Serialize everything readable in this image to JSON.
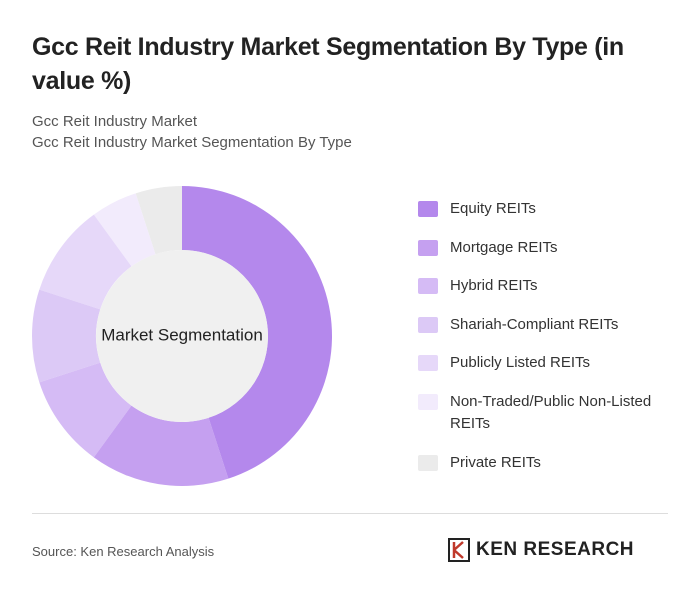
{
  "header": {
    "title": "Gcc Reit Industry Market Segmentation By Type (in value %)",
    "subtitle": [
      "Gcc Reit Industry Market",
      "Gcc Reit Industry Market Segmentation By Type"
    ]
  },
  "chart_data": {
    "type": "donut",
    "center_label": "Market Segmentation",
    "categories": [
      "Equity REITs",
      "Mortgage REITs",
      "Hybrid REITs",
      "Shariah-Compliant REITs",
      "Publicly Listed REITs",
      "Non-Traded/Public Non-Listed REITs",
      "Private REITs"
    ],
    "values": [
      45,
      15,
      10,
      10,
      10,
      5,
      5
    ],
    "colors": [
      "#b488ec",
      "#c5a0f0",
      "#d5bbf5",
      "#dcc9f6",
      "#e6d8f9",
      "#f2ebfc",
      "#ebebeb"
    ]
  },
  "footer": {
    "source": "Source: Ken Research Analysis",
    "logo": "KEN RESEARCH"
  }
}
